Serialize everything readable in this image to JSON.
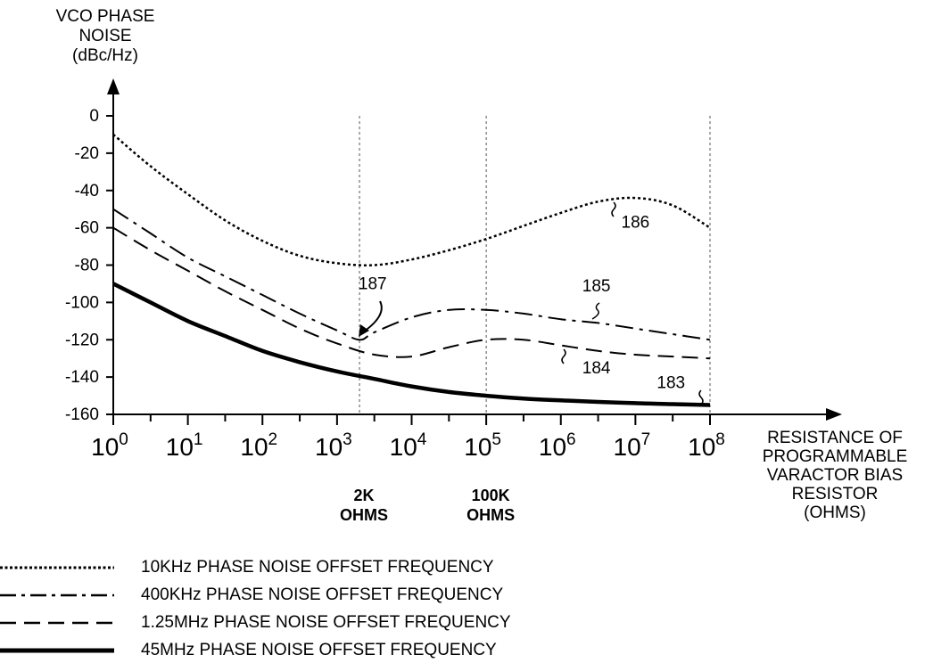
{
  "chart_data": {
    "type": "line",
    "ylabel": [
      "VCO PHASE",
      "NOISE",
      "(dBc/Hz)"
    ],
    "xlabel": [
      "RESISTANCE OF",
      "PROGRAMMABLE",
      "VARACTOR BIAS",
      "RESISTOR",
      "(OHMS)"
    ],
    "x_scale": "log",
    "xlim": [
      1,
      100000000
    ],
    "ylim": [
      -160,
      0
    ],
    "x_ticks": [
      1,
      10,
      100,
      1000,
      10000,
      100000,
      1000000,
      10000000,
      100000000
    ],
    "x_tick_base": "10",
    "x_tick_exponents": [
      "0",
      "1",
      "2",
      "3",
      "4",
      "5",
      "6",
      "7",
      "8"
    ],
    "y_ticks": [
      "0",
      "-20",
      "-40",
      "-60",
      "-80",
      "-100",
      "-120",
      "-140",
      "-160"
    ],
    "y_tick_values": [
      0,
      -20,
      -40,
      -60,
      -80,
      -100,
      -120,
      -140,
      -160
    ],
    "reference_lines": [
      {
        "x": 2000,
        "label": [
          "2K",
          "OHMS"
        ]
      },
      {
        "x": 100000,
        "label": [
          "100K",
          "OHMS"
        ]
      },
      {
        "x": 100000000,
        "label": []
      }
    ],
    "series": [
      {
        "name": "10KHz PHASE NOISE OFFSET FREQUENCY",
        "style": "dotted",
        "ref": "186",
        "x": [
          1,
          3.16,
          10,
          31.6,
          100,
          316,
          1000,
          3160,
          10000,
          31600,
          100000,
          316000,
          1000000,
          3160000,
          10000000,
          31600000,
          100000000
        ],
        "y": [
          -10,
          -27,
          -42,
          -56,
          -67,
          -75,
          -79,
          -80,
          -77,
          -72,
          -66,
          -59,
          -52,
          -46,
          -44,
          -48,
          -60
        ]
      },
      {
        "name": "400KHz PHASE NOISE OFFSET FREQUENCY",
        "style": "dash-dot",
        "ref": "185",
        "x": [
          1,
          3.16,
          10,
          31.6,
          100,
          316,
          1000,
          2000,
          3160,
          10000,
          31600,
          100000,
          316000,
          1000000,
          3160000,
          10000000,
          31600000,
          100000000
        ],
        "y": [
          -50,
          -63,
          -76,
          -86,
          -96,
          -106,
          -115,
          -120,
          -116,
          -108,
          -104,
          -104,
          -106,
          -109,
          -111,
          -114,
          -117,
          -120
        ]
      },
      {
        "name": "1.25MHz PHASE NOISE OFFSET FREQUENCY",
        "style": "dashed",
        "ref": "184",
        "x": [
          1,
          3.16,
          10,
          31.6,
          100,
          316,
          1000,
          3160,
          10000,
          31600,
          100000,
          316000,
          1000000,
          3160000,
          10000000,
          31600000,
          100000000
        ],
        "y": [
          -60,
          -72,
          -83,
          -94,
          -104,
          -114,
          -122,
          -128,
          -129,
          -124,
          -120,
          -120,
          -123,
          -126,
          -128,
          -129,
          -130
        ]
      },
      {
        "name": "45MHz PHASE NOISE OFFSET FREQUENCY",
        "style": "solid",
        "ref": "183",
        "x": [
          1,
          3.16,
          10,
          31.6,
          100,
          316,
          1000,
          3160,
          10000,
          31600,
          100000,
          316000,
          1000000,
          3160000,
          10000000,
          31600000,
          100000000
        ],
        "y": [
          -90,
          -100,
          -110,
          -118,
          -126,
          -132,
          -137,
          -141,
          -145,
          -148,
          -150,
          -151.5,
          -152.5,
          -153.3,
          -154,
          -154.5,
          -155
        ]
      }
    ],
    "annotations": [
      {
        "text": "186",
        "x": 10000000,
        "y": -60
      },
      {
        "text": "185",
        "x": 3000000,
        "y": -94
      },
      {
        "text": "187",
        "x": 3000,
        "y": -93
      },
      {
        "text": "184",
        "x": 3000000,
        "y": -138
      },
      {
        "text": "183",
        "x": 30000000,
        "y": -146
      }
    ]
  },
  "legend": [
    {
      "style": "dotted",
      "label": "10KHz PHASE NOISE OFFSET FREQUENCY"
    },
    {
      "style": "dash-dot",
      "label": "400KHz PHASE NOISE OFFSET FREQUENCY"
    },
    {
      "style": "dashed",
      "label": "1.25MHz PHASE NOISE OFFSET FREQUENCY"
    },
    {
      "style": "solid",
      "label": "45MHz PHASE NOISE OFFSET FREQUENCY"
    }
  ]
}
